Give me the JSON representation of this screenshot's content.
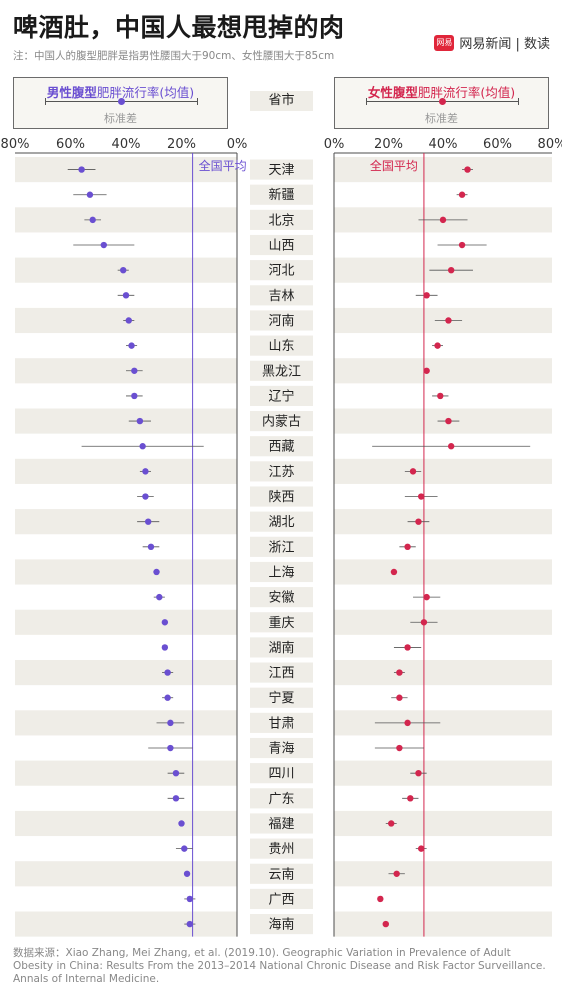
{
  "header": {
    "title": "啤酒肚，中国人最想甩掉的肉",
    "subtitle": "注：中国人的腹型肥胖是指男性腰围大于90cm、女性腰围大于85cm",
    "brand": "网易新闻 | 数读",
    "brand_logo": "网易"
  },
  "legend": {
    "male_bold": "男性腹型",
    "male_rest": "肥胖流行率(均值)",
    "female_bold": "女性腹型",
    "female_rest": "肥胖流行率(均值)",
    "std_label": "标准差",
    "province_header": "省市"
  },
  "colors": {
    "male": "#6a4fd1",
    "female": "#d3264e",
    "stripe": "#efede7",
    "axis": "#4d4d4d"
  },
  "footer": "数据来源：Xiao Zhang, Mei Zhang, et al. (2019.10). Geographic Variation in Prevalence of Adult Obesity in China: Results From the 2013–2014 National Chronic Disease and Risk Factor Surveillance. Annals of Internal Medicine.",
  "chart_data": {
    "type": "scatter",
    "title": "啤酒肚，中国人最想甩掉的肉",
    "male_ticks": [
      "80%",
      "60%",
      "40%",
      "20%",
      "0%"
    ],
    "female_ticks": [
      "0%",
      "20%",
      "40%",
      "60%",
      "80%"
    ],
    "xlim": [
      0,
      80
    ],
    "male_national_average": 16,
    "female_national_average": 33,
    "average_label": "全国平均",
    "provinces": [
      "天津",
      "新疆",
      "北京",
      "山西",
      "河北",
      "吉林",
      "河南",
      "山东",
      "黑龙江",
      "辽宁",
      "内蒙古",
      "西藏",
      "江苏",
      "陕西",
      "湖北",
      "浙江",
      "上海",
      "安徽",
      "重庆",
      "湖南",
      "江西",
      "宁夏",
      "甘肃",
      "青海",
      "四川",
      "广东",
      "福建",
      "贵州",
      "云南",
      "广西",
      "海南"
    ],
    "series": [
      {
        "name": "男性腹型肥胖流行率(均值)",
        "mean": [
          56,
          53,
          52,
          48,
          41,
          40,
          39,
          38,
          37,
          37,
          35,
          34,
          33,
          33,
          32,
          31,
          29,
          28,
          26,
          26,
          25,
          25,
          24,
          24,
          22,
          22,
          20,
          19,
          18,
          17,
          17
        ],
        "std": [
          5,
          6,
          3,
          11,
          2,
          3,
          2,
          2,
          3,
          3,
          4,
          22,
          2,
          3,
          4,
          3,
          0,
          2,
          1,
          1,
          2,
          2,
          5,
          8,
          3,
          3,
          1,
          3,
          1,
          2,
          2
        ]
      },
      {
        "name": "女性腹型肥胖流行率(均值)",
        "mean": [
          49,
          47,
          40,
          47,
          43,
          34,
          42,
          38,
          34,
          39,
          42,
          43,
          29,
          32,
          31,
          27,
          22,
          34,
          33,
          27,
          24,
          24,
          27,
          24,
          31,
          28,
          21,
          32,
          23,
          17,
          19
        ],
        "std": [
          2,
          2,
          9,
          9,
          8,
          4,
          5,
          2,
          1,
          3,
          4,
          29,
          3,
          6,
          4,
          3,
          1,
          5,
          5,
          5,
          2,
          3,
          12,
          9,
          3,
          3,
          2,
          2,
          3,
          1,
          1
        ]
      }
    ]
  }
}
